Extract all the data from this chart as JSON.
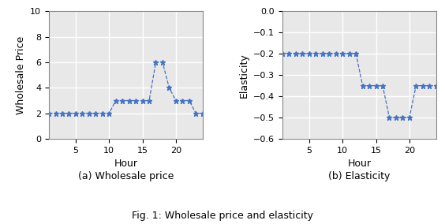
{
  "wholesale_hours": [
    1,
    2,
    3,
    4,
    5,
    6,
    7,
    8,
    9,
    10,
    11,
    12,
    13,
    14,
    15,
    16,
    17,
    18,
    19,
    20,
    21,
    22,
    23,
    24
  ],
  "wholesale_price": [
    2,
    2,
    2,
    2,
    2,
    2,
    2,
    2,
    2,
    2,
    3,
    3,
    3,
    3,
    3,
    3,
    6,
    6,
    4,
    3,
    3,
    3,
    2,
    2
  ],
  "elasticity_hours": [
    1,
    2,
    3,
    4,
    5,
    6,
    7,
    8,
    9,
    10,
    11,
    12,
    13,
    14,
    15,
    16,
    17,
    18,
    19,
    20,
    21,
    22,
    23,
    24
  ],
  "elasticity": [
    -0.2,
    -0.2,
    -0.2,
    -0.2,
    -0.2,
    -0.2,
    -0.2,
    -0.2,
    -0.2,
    -0.2,
    -0.2,
    -0.2,
    -0.35,
    -0.35,
    -0.35,
    -0.35,
    -0.5,
    -0.5,
    -0.5,
    -0.5,
    -0.35,
    -0.35,
    -0.35,
    -0.35
  ],
  "line_color": "#4472c4",
  "marker": "*",
  "markersize": 4.5,
  "linewidth": 0.9,
  "linestyle": "--",
  "wholesale_ylim": [
    0,
    10
  ],
  "wholesale_yticks": [
    0,
    2,
    4,
    6,
    8,
    10
  ],
  "elasticity_ylim": [
    -0.6,
    0.0
  ],
  "elasticity_yticks": [
    0.0,
    -0.1,
    -0.2,
    -0.3,
    -0.4,
    -0.5,
    -0.6
  ],
  "xlim": [
    1,
    24
  ],
  "xticks": [
    5,
    10,
    15,
    20
  ],
  "xlabel": "Hour",
  "wholesale_ylabel": "Wholesale Price",
  "elasticity_ylabel": "Elasticity",
  "label_a": "(a) Wholesale price",
  "label_b": "(b) Elasticity",
  "fig_caption": "Fig. 1: Wholesale price and elasticity",
  "background_color": "#ffffff",
  "grid_color": "#ffffff",
  "grid_linewidth": 1.0,
  "axes_edgecolor": "#888888",
  "tick_labelsize": 8,
  "axis_labelsize": 9,
  "sublabel_fontsize": 9,
  "caption_fontsize": 9
}
